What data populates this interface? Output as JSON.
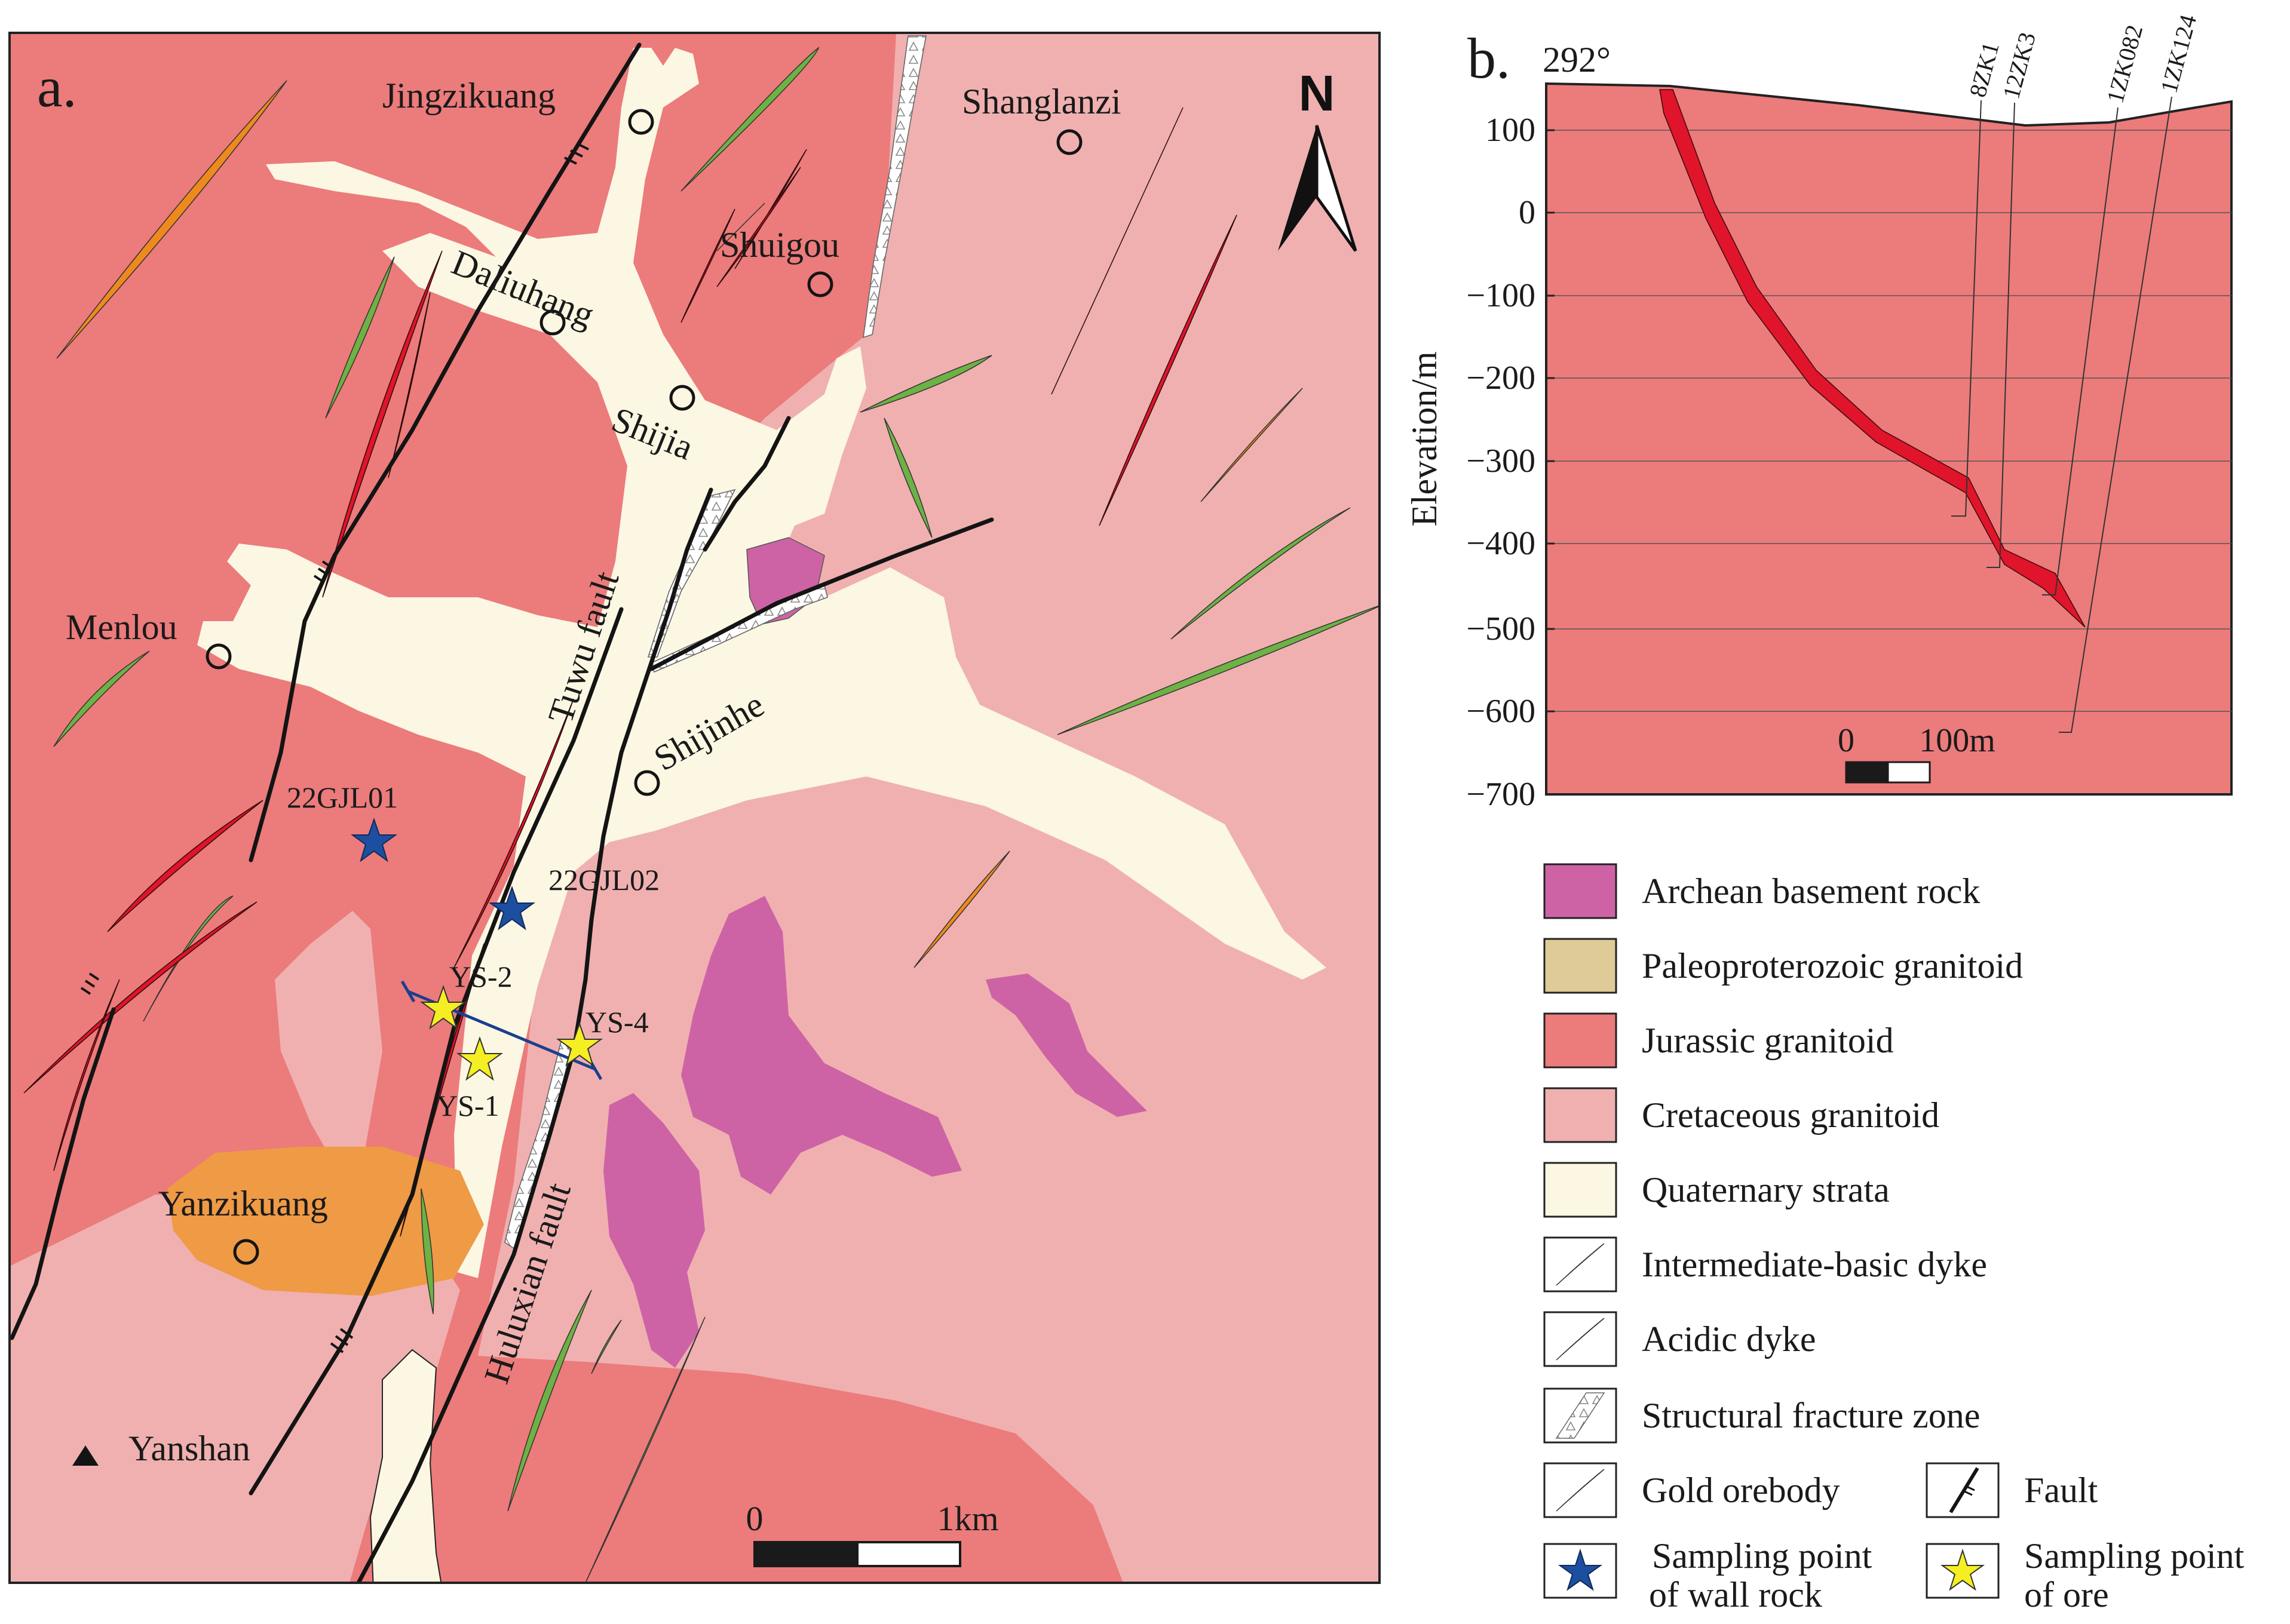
{
  "panel_a": {
    "label": "a.",
    "north_label": "N",
    "places": {
      "jingzikuang": "Jingzikuang",
      "shanglanzi": "Shanglanzi",
      "shuigou": "Shuigou",
      "daliuhang": "Daliuhang",
      "shijia": "Shijia",
      "menlou": "Menlou",
      "shijinhe": "Shijinhe",
      "yanzikuang": "Yanzikuang",
      "yanshan": "Yanshan"
    },
    "faults": {
      "tuwu": "Tuwu fault",
      "huluxian": "Huluxian fault"
    },
    "samples": {
      "wall_1": "22GJL01",
      "wall_2": "22GJL02",
      "ore_1": "YS-1",
      "ore_2": "YS-2",
      "ore_4": "YS-4"
    },
    "scale": {
      "zero": "0",
      "end": "1km"
    },
    "colors": {
      "jurassic": "#ec7b7b",
      "cretaceous": "#f0b0b0",
      "quaternary": "#fbf7e3",
      "archean": "#cd63a5",
      "paleoproterozoic": "#dfcb97",
      "yanzikuang_fill": "#ef9a45",
      "mafic_dyke": "#6db244",
      "acidic_dyke": "#ee8a1d",
      "orebody": "#e0142a",
      "wall_star": "#1d4fa0",
      "ore_star": "#f4ee23"
    }
  },
  "panel_b": {
    "label": "b.",
    "bearing": "292°",
    "ylabel": "Elevation/m",
    "yticks": [
      "100",
      "0",
      "−100",
      "−200",
      "−300",
      "−400",
      "−500",
      "−600",
      "−700"
    ],
    "boreholes": [
      "8ZK1",
      "12ZK3",
      "1ZK082",
      "1ZK124"
    ],
    "scale": {
      "zero": "0",
      "end": "100m"
    }
  },
  "legend": {
    "archean": "Archean basement rock",
    "paleoproterozoic": "Paleoproterozoic granitoid",
    "jurassic": "Jurassic granitoid",
    "cretaceous": "Cretaceous granitoid",
    "quaternary": "Quaternary strata",
    "mafic_dyke": "Intermediate-basic dyke",
    "acidic_dyke": "Acidic dyke",
    "fracture": "Structural fracture zone",
    "orebody": "Gold orebody",
    "fault": "Fault",
    "wall_line1": "Sampling point",
    "wall_line2": "of wall rock",
    "ore_line1": "Sampling point",
    "ore_line2": "of ore"
  }
}
